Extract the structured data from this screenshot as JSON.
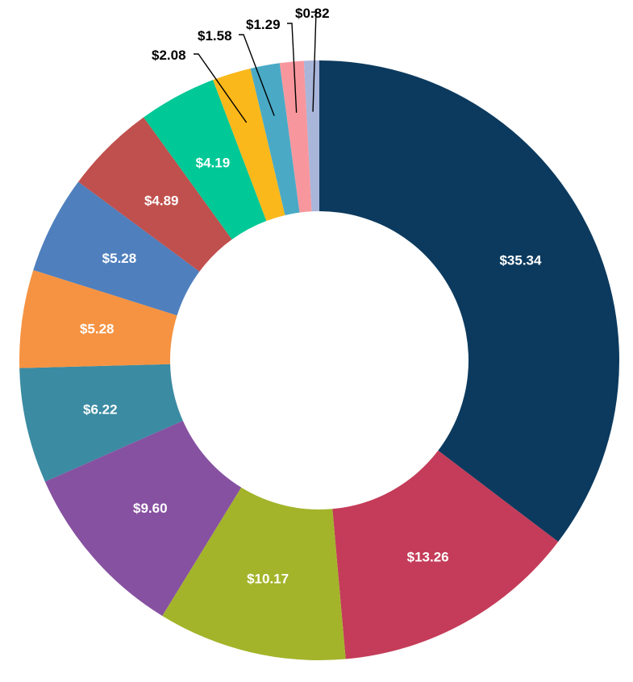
{
  "chart_data": {
    "type": "pie",
    "variant": "donut",
    "title": "",
    "slices": [
      {
        "label": "$35.34",
        "value": 35.34,
        "color": "#0c3a5e"
      },
      {
        "label": "$13.26",
        "value": 13.26,
        "color": "#c43c59"
      },
      {
        "label": "$10.17",
        "value": 10.17,
        "color": "#a3b42a"
      },
      {
        "label": "$9.60",
        "value": 9.6,
        "color": "#8751a1"
      },
      {
        "label": "$6.22",
        "value": 6.22,
        "color": "#3b8ba2"
      },
      {
        "label": "$5.28",
        "value": 5.28,
        "color": "#f59342"
      },
      {
        "label": "$5.28",
        "value": 5.28,
        "color": "#4f7fbd"
      },
      {
        "label": "$4.89",
        "value": 4.89,
        "color": "#c0504d"
      },
      {
        "label": "$4.19",
        "value": 4.19,
        "color": "#00c896"
      },
      {
        "label": "$2.08",
        "value": 2.08,
        "color": "#fbb81b"
      },
      {
        "label": "$1.58",
        "value": 1.58,
        "color": "#4aaac6"
      },
      {
        "label": "$1.29",
        "value": 1.29,
        "color": "#f7979d"
      },
      {
        "label": "$0.82",
        "value": 0.82,
        "color": "#a9b5d9"
      }
    ],
    "legend": "none",
    "label_color_inside": "#ffffff",
    "label_color_outside": "#000000"
  }
}
